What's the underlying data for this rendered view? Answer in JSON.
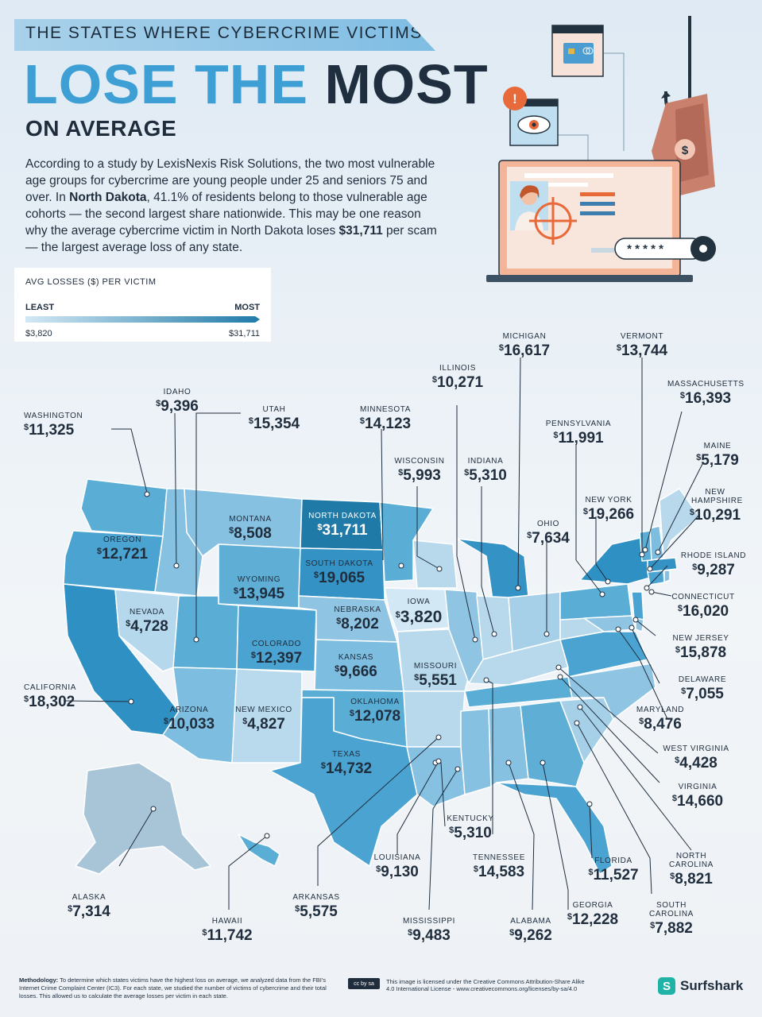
{
  "header": {
    "kicker": "THE STATES WHERE CYBERCRIME VICTIMS",
    "headline_part1": "LOSE THE ",
    "headline_part2": "MOST",
    "subhead": "ON AVERAGE"
  },
  "intro": {
    "p1": "According to a study by LexisNexis Risk Solutions, the two most vulnerable age groups for cybercrime are young people under 25 and seniors 75 and over. In ",
    "state": "North Dakota",
    "p2": ", 41.1% of residents belong to those vulnerable age cohorts — the second largest share nationwide. This may be one reason why the average cybercrime victim in North Dakota loses ",
    "amount": "$31,711",
    "p3": " per scam — the largest average loss of any state."
  },
  "legend": {
    "title": "AVG LOSSES ($) PER VICTIM",
    "least_label": "LEAST",
    "most_label": "MOST",
    "min_value": "$3,820",
    "max_value": "$31,711"
  },
  "illustration": {
    "password_mask": "* * * * *",
    "dollar_symbol": "$",
    "alert_symbol": "!"
  },
  "colors": {
    "least": "#d3e8f5",
    "most": "#1f6f99",
    "accent_orange": "#e8693a"
  },
  "states": [
    {
      "name": "WASHINGTON",
      "value": "11,325"
    },
    {
      "name": "IDAHO",
      "value": "9,396"
    },
    {
      "name": "UTAH",
      "value": "15,354"
    },
    {
      "name": "MINNESOTA",
      "value": "14,123"
    },
    {
      "name": "ILLINOIS",
      "value": "10,271"
    },
    {
      "name": "MICHIGAN",
      "value": "16,617"
    },
    {
      "name": "VERMONT",
      "value": "13,744"
    },
    {
      "name": "MASSACHUSETTS",
      "value": "16,393"
    },
    {
      "name": "PENNSYLVANIA",
      "value": "11,991"
    },
    {
      "name": "WISCONSIN",
      "value": "5,993"
    },
    {
      "name": "INDIANA",
      "value": "5,310"
    },
    {
      "name": "MAINE",
      "value": "5,179"
    },
    {
      "name": "NEW HAMPSHIRE",
      "value": "10,291"
    },
    {
      "name": "NEW YORK",
      "value": "19,266"
    },
    {
      "name": "OHIO",
      "value": "7,634"
    },
    {
      "name": "MONTANA",
      "value": "8,508"
    },
    {
      "name": "NORTH DAKOTA",
      "value": "31,711"
    },
    {
      "name": "OREGON",
      "value": "12,721"
    },
    {
      "name": "SOUTH DAKOTA",
      "value": "19,065"
    },
    {
      "name": "WYOMING",
      "value": "13,945"
    },
    {
      "name": "RHODE ISLAND",
      "value": "9,287"
    },
    {
      "name": "CONNECTICUT",
      "value": "16,020"
    },
    {
      "name": "IOWA",
      "value": "3,820"
    },
    {
      "name": "NEVADA",
      "value": "4,728"
    },
    {
      "name": "NEBRASKA",
      "value": "8,202"
    },
    {
      "name": "NEW JERSEY",
      "value": "15,878"
    },
    {
      "name": "COLORADO",
      "value": "12,397"
    },
    {
      "name": "KANSAS",
      "value": "9,666"
    },
    {
      "name": "MISSOURI",
      "value": "5,551"
    },
    {
      "name": "DELAWARE",
      "value": "7,055"
    },
    {
      "name": "CALIFORNIA",
      "value": "18,302"
    },
    {
      "name": "ARIZONA",
      "value": "10,033"
    },
    {
      "name": "NEW MEXICO",
      "value": "4,827"
    },
    {
      "name": "OKLAHOMA",
      "value": "12,078"
    },
    {
      "name": "MARYLAND",
      "value": "8,476"
    },
    {
      "name": "WEST VIRGINIA",
      "value": "4,428"
    },
    {
      "name": "TEXAS",
      "value": "14,732"
    },
    {
      "name": "VIRGINIA",
      "value": "14,660"
    },
    {
      "name": "KENTUCKY",
      "value": "5,310"
    },
    {
      "name": "NORTH CAROLINA",
      "value": "8,821"
    },
    {
      "name": "LOUISIANA",
      "value": "9,130"
    },
    {
      "name": "TENNESSEE",
      "value": "14,583"
    },
    {
      "name": "FLORIDA",
      "value": "11,527"
    },
    {
      "name": "ALASKA",
      "value": "7,314"
    },
    {
      "name": "ARKANSAS",
      "value": "5,575"
    },
    {
      "name": "GEORGIA",
      "value": "12,228"
    },
    {
      "name": "SOUTH CAROLINA",
      "value": "7,882"
    },
    {
      "name": "HAWAII",
      "value": "11,742"
    },
    {
      "name": "MISSISSIPPI",
      "value": "9,483"
    },
    {
      "name": "ALABAMA",
      "value": "9,262"
    }
  ],
  "footer": {
    "methodology_label": "Methodology:",
    "methodology_text": " To determine which states victims have the highest loss on average, we analyzed data from the FBI's Internet Crime Complaint Center (IC3). For each state, we studied the number of victims of cybercrime and their total losses. This allowed us to calculate the average losses per victim in each state.",
    "cc_badge": "cc by sa",
    "license_text": "This image is licensed under the Creative Commons Attribution-Share Alike 4.0 International License - www.creativecommons.org/licenses/by-sa/4.0",
    "brand": "Surfshark",
    "brand_mark": "S"
  }
}
